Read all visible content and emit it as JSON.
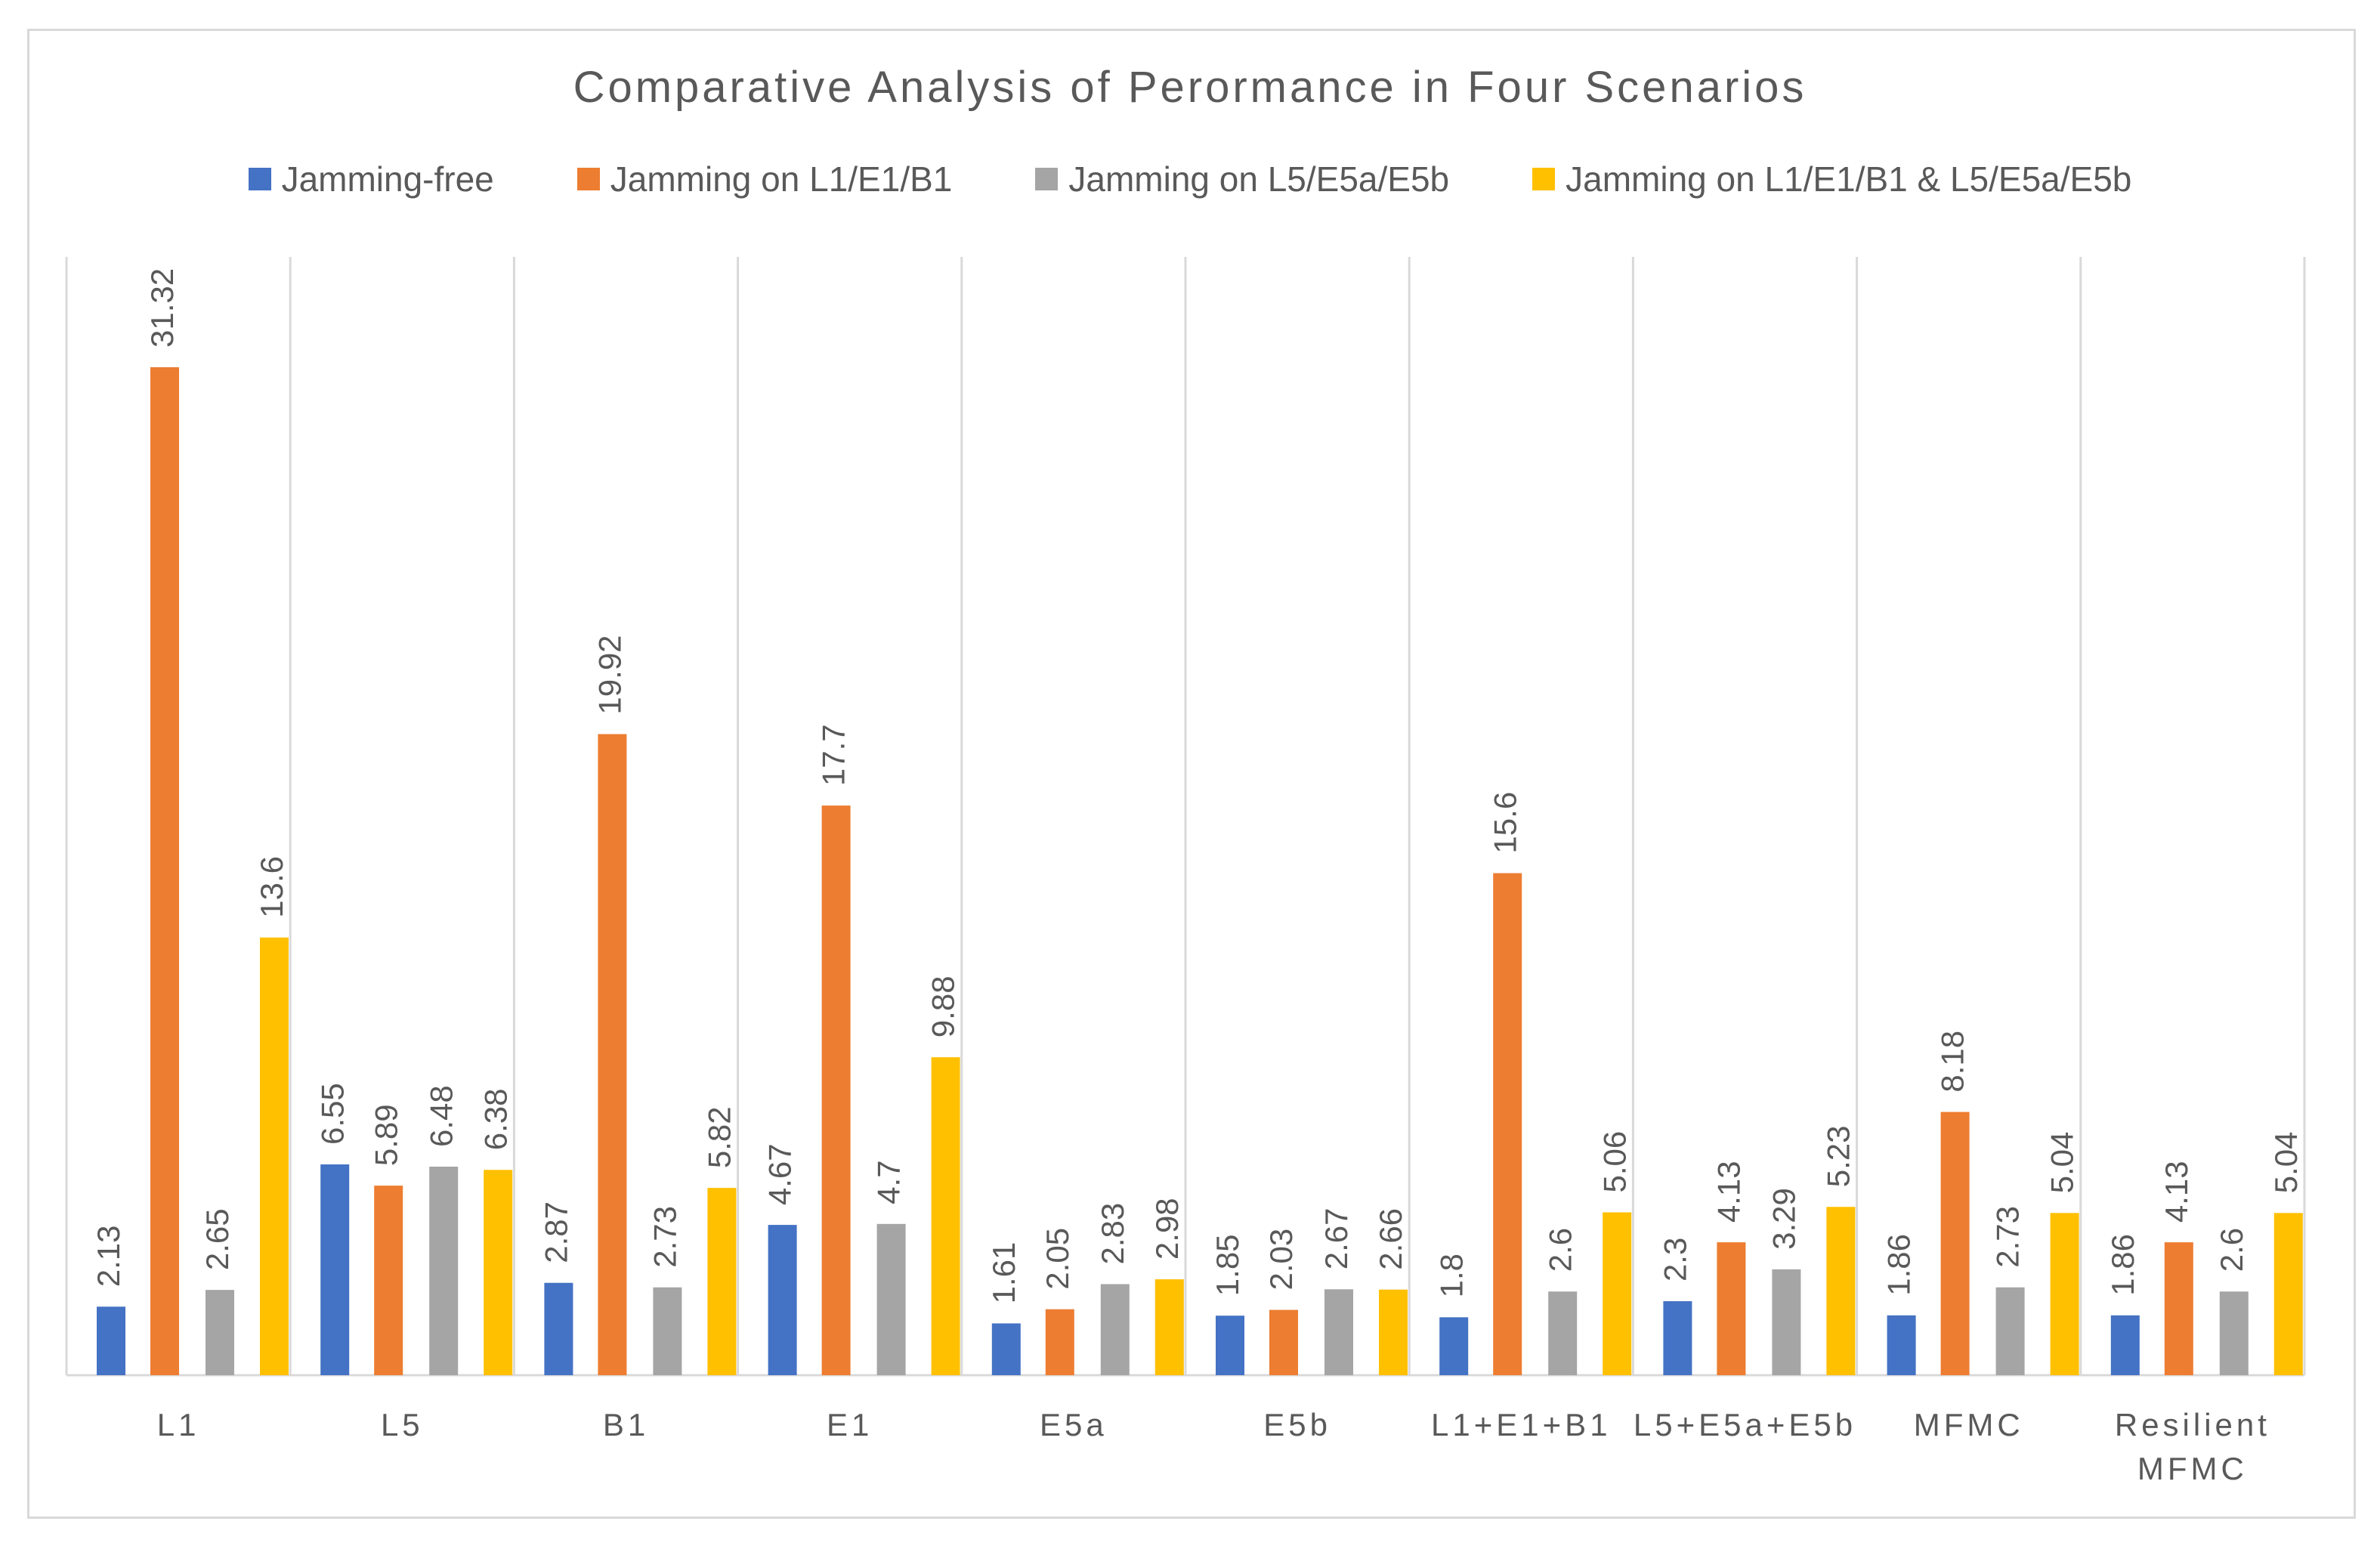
{
  "chart_data": {
    "type": "bar",
    "title": "Comparative Analysis of Perormance in Four  Scenarios",
    "categories": [
      [
        "L1"
      ],
      [
        "L5"
      ],
      [
        "B1"
      ],
      [
        "E1"
      ],
      [
        "E5a"
      ],
      [
        "E5b"
      ],
      [
        "L1+E1+B1"
      ],
      [
        "L5+E5a+E5b"
      ],
      [
        "MFMC"
      ],
      [
        "Resilient",
        "MFMC"
      ]
    ],
    "series": [
      {
        "name": "Jamming-free",
        "color": "#4472c4",
        "values": [
          2.13,
          6.55,
          2.87,
          4.67,
          1.61,
          1.85,
          1.8,
          2.3,
          1.86,
          1.86
        ]
      },
      {
        "name": "Jamming on L1/E1/B1",
        "color": "#ed7d31",
        "values": [
          31.32,
          5.89,
          19.92,
          17.7,
          2.05,
          2.03,
          15.6,
          4.13,
          8.18,
          4.13
        ]
      },
      {
        "name": "Jamming on L5/E5a/E5b",
        "color": "#a5a5a5",
        "values": [
          2.65,
          6.48,
          2.73,
          4.7,
          2.83,
          2.67,
          2.6,
          3.29,
          2.73,
          2.6
        ]
      },
      {
        "name": "Jamming on L1/E1/B1 & L5/E5a/E5b",
        "color": "#ffc000",
        "values": [
          13.6,
          6.38,
          5.82,
          9.88,
          2.98,
          2.66,
          5.06,
          5.23,
          5.04,
          5.04
        ]
      }
    ],
    "xlabel": "",
    "ylabel": "",
    "ylim": [
      0,
      35
    ],
    "legend_position": "top-center",
    "grid": "vertical category separators"
  }
}
